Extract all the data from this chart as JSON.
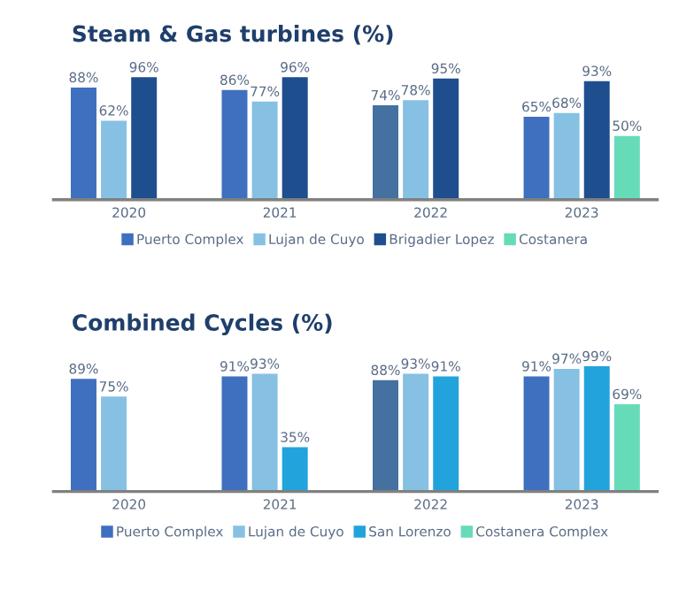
{
  "chart_data": [
    {
      "type": "bar",
      "title": "Steam & Gas turbines (%)",
      "categories": [
        "2020",
        "2021",
        "2022",
        "2023"
      ],
      "legend": "bottom",
      "grid": false,
      "series": [
        {
          "name": "Puerto Complex",
          "color": "#3f6fbf",
          "colors": [
            "#3f6fbf",
            "#3f6fbf",
            "#44719f",
            "#3f6fbf"
          ],
          "values": [
            88,
            86,
            74,
            65
          ],
          "value_labels": [
            "88%",
            "86%",
            "74%",
            "65%"
          ]
        },
        {
          "name": "Lujan de Cuyo",
          "color": "#86c1e3",
          "values": [
            62,
            77,
            78,
            68
          ],
          "value_labels": [
            "62%",
            "77%",
            "78%",
            "68%"
          ]
        },
        {
          "name": "Brigadier Lopez",
          "color": "#1f4e8f",
          "values": [
            96,
            96,
            95,
            93
          ],
          "value_labels": [
            "96%",
            "96%",
            "95%",
            "93%"
          ]
        },
        {
          "name": "Costanera",
          "color": "#66dbb8",
          "values": [
            null,
            null,
            null,
            50
          ],
          "value_labels": [
            null,
            null,
            null,
            "50%"
          ]
        }
      ]
    },
    {
      "type": "bar",
      "title": "Combined Cycles (%)",
      "categories": [
        "2020",
        "2021",
        "2022",
        "2023"
      ],
      "legend": "bottom",
      "grid": false,
      "series": [
        {
          "name": "Puerto Complex",
          "color": "#3f6fbf",
          "colors": [
            "#3f6fbf",
            "#3f6fbf",
            "#44719f",
            "#3f6fbf"
          ],
          "values": [
            89,
            91,
            88,
            91
          ],
          "value_labels": [
            "89%",
            "91%",
            "88%",
            "91%"
          ]
        },
        {
          "name": "Lujan de Cuyo",
          "color": "#86c1e3",
          "values": [
            75,
            93,
            93,
            97
          ],
          "value_labels": [
            "75%",
            "93%",
            "93%",
            "97%"
          ]
        },
        {
          "name": "San Lorenzo",
          "color": "#23a3dc",
          "values": [
            null,
            35,
            91,
            99
          ],
          "value_labels": [
            null,
            "35%",
            "91%",
            "99%"
          ]
        },
        {
          "name": "Costanera Complex",
          "color": "#66dbb8",
          "values": [
            null,
            null,
            null,
            69
          ],
          "value_labels": [
            null,
            null,
            null,
            "69%"
          ]
        }
      ]
    }
  ]
}
